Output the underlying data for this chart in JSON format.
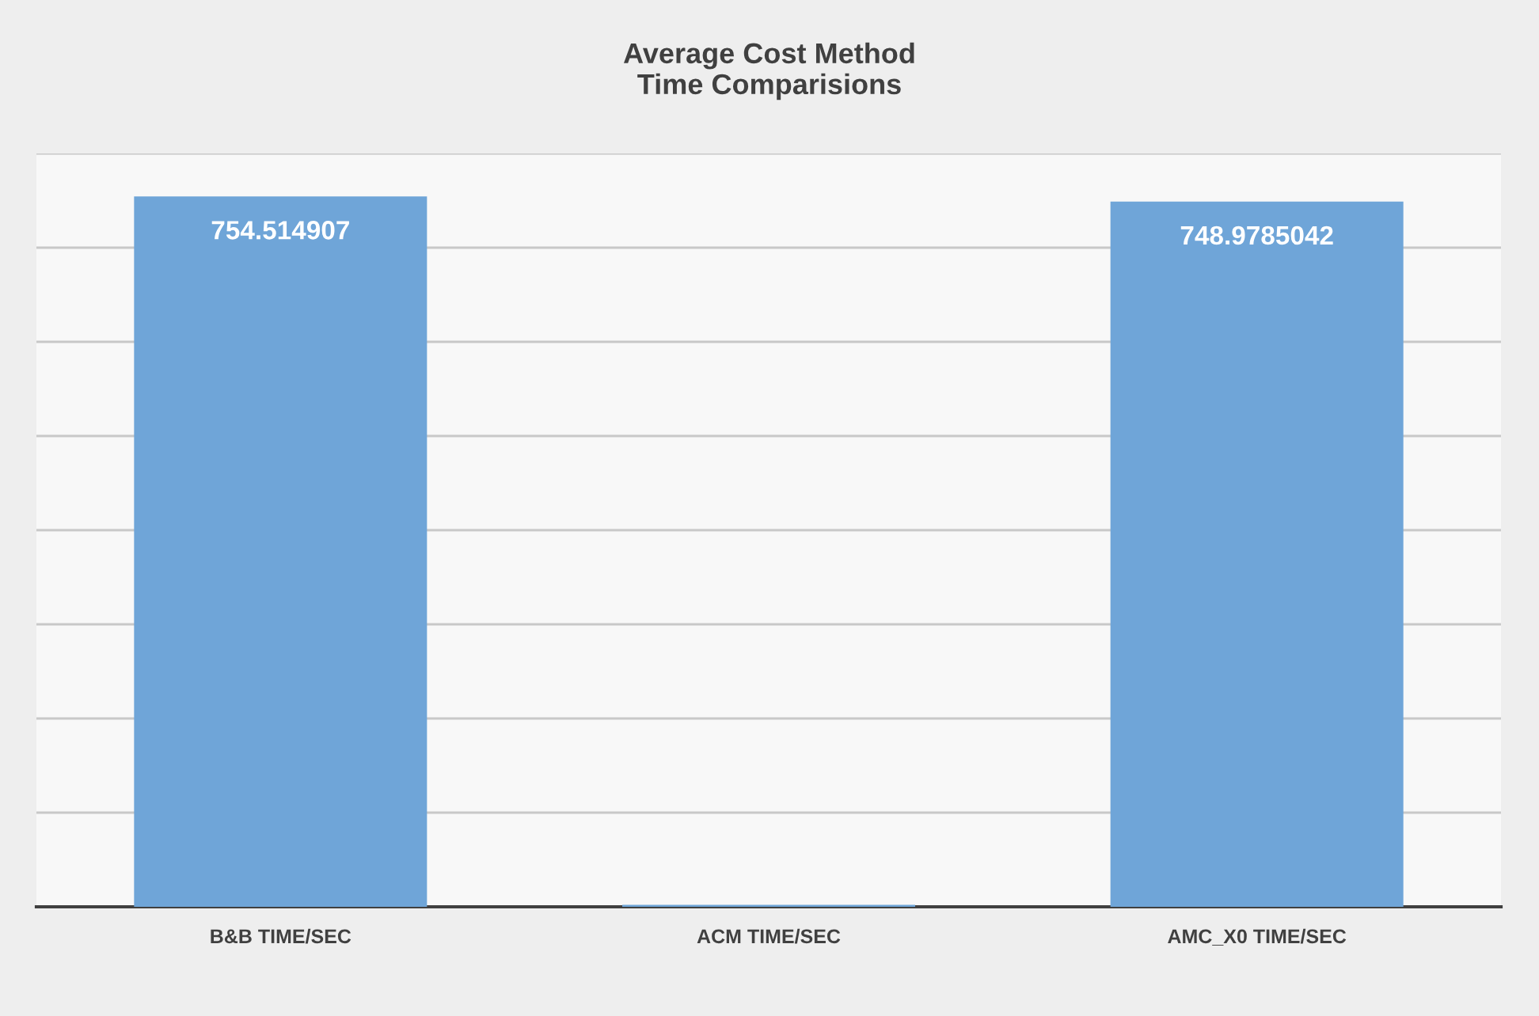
{
  "chart_data": {
    "type": "bar",
    "title": "Average Cost Method\nTime Comparisions",
    "categories": [
      "B&B TIME/SEC",
      "ACM TIME/SEC",
      "AMC_X0 TIME/SEC"
    ],
    "values": [
      754.514907,
      2,
      748.9785042
    ],
    "value_labels": [
      "754.514907",
      null,
      "748.9785042"
    ],
    "color": "#6fa5d8",
    "ylim": [
      0,
      800
    ],
    "yticks": [
      {
        "value": 0,
        "label": null
      },
      {
        "value": 100,
        "label": null
      },
      {
        "value": 200,
        "label": null
      },
      {
        "value": 300,
        "label": null
      },
      {
        "value": 400,
        "label": null
      },
      {
        "value": 500,
        "label": null
      },
      {
        "value": 600,
        "label": null
      },
      {
        "value": 700,
        "label": null
      },
      {
        "value": 800,
        "label": null
      }
    ],
    "tick_labels": "x",
    "grid": "y",
    "legend": false
  }
}
